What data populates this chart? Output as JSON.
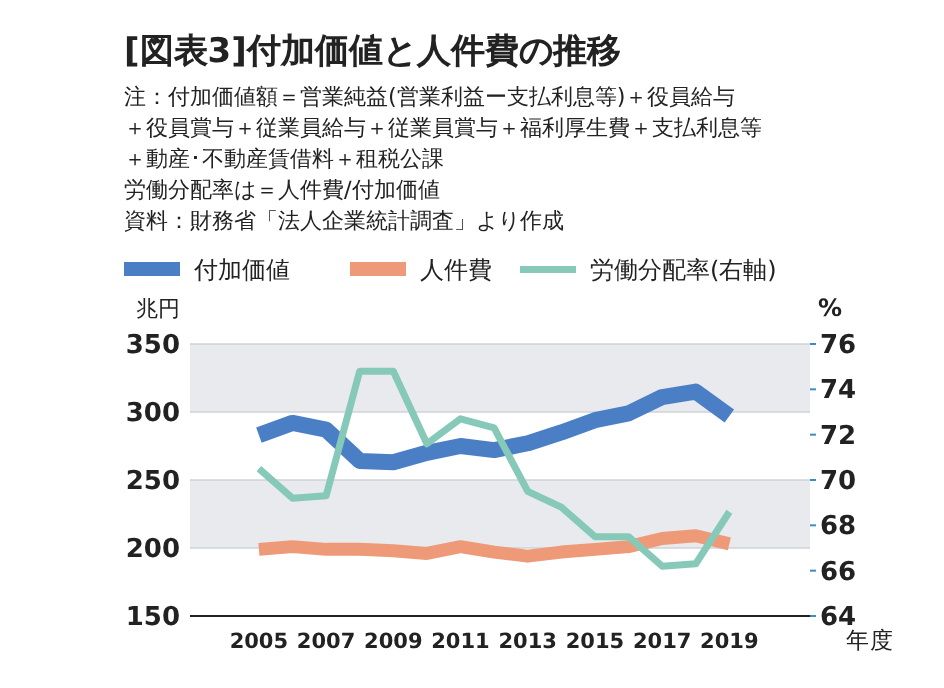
{
  "chart_data": {
    "type": "line",
    "title": "[図表3]付加価値と人件費の推移",
    "annotations": [
      "注：付加価値額＝営業純益(営業利益ー支払利息等)＋役員給与",
      "＋役員賞与＋従業員給与＋従業員賞与＋福利厚生費＋支払利息等",
      "＋動産･不動産賃借料＋租税公課",
      "労働分配率は＝人件費/付加価値",
      "資料：財務省「法人企業統計調査」より作成"
    ],
    "ylabel": "兆円",
    "y2label": "%",
    "xlabel": "年度",
    "x": [
      2005,
      2006,
      2007,
      2008,
      2009,
      2010,
      2011,
      2012,
      2013,
      2014,
      2015,
      2016,
      2017,
      2018,
      2019
    ],
    "series": [
      {
        "name": "付加価値",
        "color": "#4a7fc6",
        "values": [
          283,
          292,
          287,
          264,
          263,
          270,
          275,
          272,
          277,
          285,
          294,
          299,
          311,
          315,
          297
        ]
      },
      {
        "name": "人件費",
        "color": "#ee9a78",
        "values": [
          199,
          201,
          199,
          199,
          198,
          196,
          201,
          197,
          194,
          197,
          199,
          201,
          207,
          209,
          203
        ]
      },
      {
        "name": "労働分配率(右軸)",
        "color": "#86c9b8",
        "axis": "y2",
        "values": [
          70.5,
          69.2,
          69.3,
          74.8,
          74.8,
          71.6,
          72.7,
          72.3,
          69.5,
          68.8,
          67.5,
          67.5,
          66.2,
          66.3,
          68.6
        ]
      }
    ],
    "xlim": [
      2002.95,
      2021.4
    ],
    "xticks": [
      2005,
      2007,
      2009,
      2011,
      2013,
      2015,
      2017,
      2019
    ],
    "ylim": [
      150,
      350
    ],
    "yticks": [
      150,
      200,
      250,
      300,
      350
    ],
    "y2lim": [
      64,
      76
    ],
    "y2ticks": [
      64,
      66,
      68,
      70,
      72,
      74,
      76
    ],
    "grid": "y",
    "legend": "top",
    "line_style": "solid"
  }
}
